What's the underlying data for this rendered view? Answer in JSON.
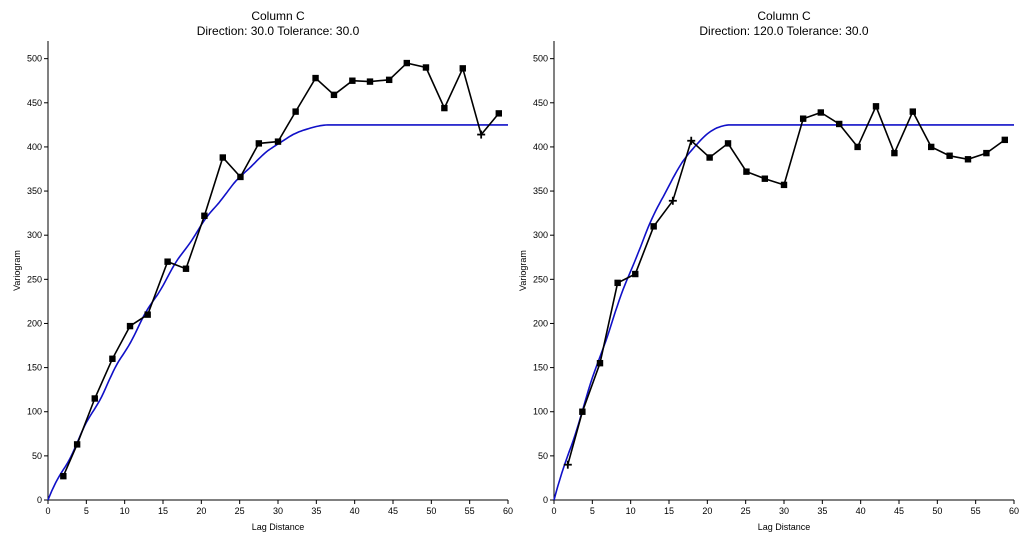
{
  "chart_data": [
    {
      "type": "line",
      "title": "Column C",
      "subtitle": "Direction: 30.0   Tolerance: 30.0",
      "xlabel": "Lag Distance",
      "ylabel": "Variogram",
      "xlim": [
        0,
        60
      ],
      "ylim": [
        0,
        520
      ],
      "xticks": [
        0,
        5,
        10,
        15,
        20,
        25,
        30,
        35,
        40,
        45,
        50,
        55,
        60
      ],
      "yticks": [
        0,
        50,
        100,
        150,
        200,
        250,
        300,
        350,
        400,
        450,
        500
      ],
      "grid": false,
      "colors": {
        "experimental": "#000000",
        "model": "#1010c8"
      },
      "series": [
        {
          "kind": "experimental",
          "x": [
            2.0,
            3.8,
            6.1,
            8.4,
            10.7,
            13.0,
            15.6,
            18.0,
            20.4,
            22.8,
            25.1,
            27.5,
            30.0,
            32.3,
            34.9,
            37.3,
            39.7,
            42.0,
            44.5,
            46.8,
            49.3,
            51.7,
            54.1,
            56.5,
            58.8
          ],
          "y": [
            27,
            63,
            115,
            160,
            197,
            210,
            270,
            262,
            322,
            388,
            366,
            404,
            406,
            440,
            478,
            459,
            475,
            474,
            476,
            495,
            490,
            444,
            489,
            414,
            438
          ],
          "markers": [
            "square",
            "square",
            "square",
            "square",
            "square",
            "square",
            "square",
            "square",
            "square",
            "square",
            "square",
            "square",
            "square",
            "square",
            "square",
            "square",
            "square",
            "square",
            "square",
            "square",
            "square",
            "square",
            "square",
            "plus",
            "square"
          ]
        },
        {
          "kind": "model",
          "sill": 425,
          "range": 37,
          "ripple": 1
        }
      ]
    },
    {
      "type": "line",
      "title": "Column C",
      "subtitle": "Direction: 120.0   Tolerance: 30.0",
      "xlabel": "Lag Distance",
      "ylabel": "Variogram",
      "xlim": [
        0,
        60
      ],
      "ylim": [
        0,
        520
      ],
      "xticks": [
        0,
        5,
        10,
        15,
        20,
        25,
        30,
        35,
        40,
        45,
        50,
        55,
        60
      ],
      "yticks": [
        0,
        50,
        100,
        150,
        200,
        250,
        300,
        350,
        400,
        450,
        500
      ],
      "grid": false,
      "colors": {
        "experimental": "#000000",
        "model": "#1010c8"
      },
      "series": [
        {
          "kind": "experimental",
          "x": [
            1.8,
            3.7,
            6.0,
            8.3,
            10.6,
            13.0,
            15.5,
            17.9,
            20.3,
            22.7,
            25.1,
            27.5,
            30.0,
            32.5,
            34.8,
            37.2,
            39.6,
            42.0,
            44.4,
            46.8,
            49.2,
            51.6,
            54.0,
            56.4,
            58.8
          ],
          "y": [
            40,
            100,
            155,
            246,
            256,
            310,
            339,
            407,
            388,
            404,
            372,
            364,
            357,
            432,
            439,
            426,
            400,
            446,
            393,
            440,
            400,
            390,
            386,
            393,
            408
          ],
          "markers": [
            "plus",
            "square",
            "square",
            "square",
            "square",
            "square",
            "plus",
            "plus",
            "square",
            "square",
            "square",
            "square",
            "square",
            "square",
            "square",
            "square",
            "square",
            "square",
            "square",
            "square",
            "square",
            "square",
            "square",
            "square",
            "square"
          ]
        },
        {
          "kind": "model",
          "sill": 425,
          "range": 23,
          "ripple": 1
        }
      ]
    }
  ]
}
